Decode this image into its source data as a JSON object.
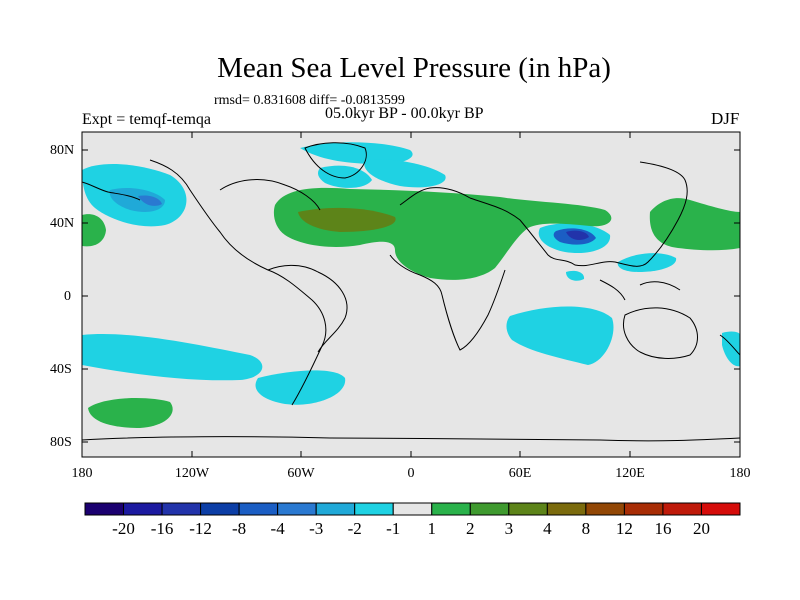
{
  "title": "Mean Sea Level Pressure (in hPa)",
  "stats": "rmsd= 0.831608 diff= -0.0813599",
  "expt": "Expt = temqf-temqa",
  "period": "05.0kyr BP - 00.0kyr BP",
  "season": "DJF",
  "lat_labels": [
    "80N",
    "40N",
    "0",
    "40S",
    "80S"
  ],
  "lon_labels": [
    "180",
    "120W",
    "60W",
    "0",
    "60E",
    "120E",
    "180"
  ],
  "colorbar": {
    "labels": [
      "-20",
      "-16",
      "-12",
      "-8",
      "-4",
      "-3",
      "-2",
      "-1",
      "1",
      "2",
      "3",
      "4",
      "8",
      "12",
      "16",
      "20"
    ],
    "colors": [
      "#1b0070",
      "#1c1aa0",
      "#2233aa",
      "#0c3ea6",
      "#1b5ec4",
      "#2a79d1",
      "#20a9d8",
      "#1fd2e3",
      "#e6e6e6",
      "#2ab24b",
      "#3f9a2f",
      "#5d8419",
      "#7b6b0d",
      "#924705",
      "#a82d05",
      "#bf1a0a",
      "#d50c0a"
    ]
  },
  "map_colors": {
    "background": "#e6e6e6",
    "coast": "#000000"
  }
}
